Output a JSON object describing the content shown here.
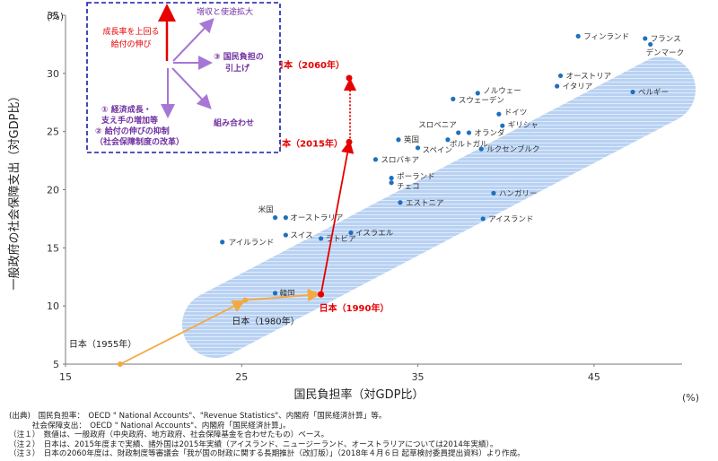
{
  "chart_data": {
    "type": "scatter",
    "xlabel": "国民負担率（対GDP比）",
    "ylabel": "一般政府の社会保障支出（対GDP比）",
    "x_unit": "(%)",
    "y_unit": "(%)",
    "xlim": [
      15,
      50
    ],
    "ylim": [
      5,
      35
    ],
    "xticks": [
      "15",
      "25",
      "35",
      "45"
    ],
    "yticks": [
      "5",
      "10",
      "15",
      "20",
      "25",
      "30",
      "35"
    ],
    "grid": false,
    "points": [
      {
        "name": "フィンランド",
        "x": 44.1,
        "y": 33.2
      },
      {
        "name": "フランス",
        "x": 47.9,
        "y": 33.0
      },
      {
        "name": "デンマーク",
        "x": 48.2,
        "y": 32.5
      },
      {
        "name": "オーストリア",
        "x": 43.1,
        "y": 29.8
      },
      {
        "name": "イタリア",
        "x": 42.9,
        "y": 28.9
      },
      {
        "name": "ベルギー",
        "x": 47.2,
        "y": 28.4
      },
      {
        "name": "ノルウェー",
        "x": 38.4,
        "y": 28.3
      },
      {
        "name": "スウェーデン",
        "x": 37.0,
        "y": 27.8
      },
      {
        "name": "ドイツ",
        "x": 39.6,
        "y": 26.5
      },
      {
        "name": "ギリシャ",
        "x": 39.8,
        "y": 25.5
      },
      {
        "name": "オランダ",
        "x": 37.9,
        "y": 24.9
      },
      {
        "name": "スロベニア",
        "x": 37.3,
        "y": 24.9
      },
      {
        "name": "ポルトガル",
        "x": 36.7,
        "y": 24.3
      },
      {
        "name": "英国",
        "x": 33.9,
        "y": 24.3
      },
      {
        "name": "スペイン",
        "x": 35.0,
        "y": 23.6
      },
      {
        "name": "ルクセンブルク",
        "x": 38.6,
        "y": 23.5
      },
      {
        "name": "スロバキア",
        "x": 32.6,
        "y": 22.6
      },
      {
        "name": "ポーランド",
        "x": 33.5,
        "y": 21.0
      },
      {
        "name": "チェコ",
        "x": 33.5,
        "y": 20.6
      },
      {
        "name": "エストニア",
        "x": 34.0,
        "y": 18.9
      },
      {
        "name": "ハンガリー",
        "x": 39.3,
        "y": 19.7
      },
      {
        "name": "米国",
        "x": 26.9,
        "y": 17.6
      },
      {
        "name": "オーストラリア",
        "x": 27.5,
        "y": 17.6
      },
      {
        "name": "スイス",
        "x": 27.5,
        "y": 16.1
      },
      {
        "name": "ラトビア",
        "x": 29.5,
        "y": 15.8
      },
      {
        "name": "イスラエル",
        "x": 31.2,
        "y": 16.3
      },
      {
        "name": "アイスランド",
        "x": 38.7,
        "y": 17.5
      },
      {
        "name": "アイルランド",
        "x": 23.9,
        "y": 15.5
      },
      {
        "name": "韓国",
        "x": 26.9,
        "y": 11.1
      }
    ],
    "japan_series": [
      {
        "label": "日本（1955年）",
        "x": 18.1,
        "y": 5.0
      },
      {
        "label": "日本（1980年）",
        "x": 25.2,
        "y": 10.5
      },
      {
        "label": "日本（1990年）",
        "x": 29.5,
        "y": 11.0
      },
      {
        "label": "日本（2015年）",
        "x": 31.1,
        "y": 24.1
      },
      {
        "label": "日本（2060年）",
        "x": 31.1,
        "y": 29.6
      }
    ]
  },
  "legend_box": {
    "growth_label_1": "成長率を上回る",
    "growth_label_2": "給付の伸び",
    "tax_increase": "増収と使途拡大",
    "burden_1": "③ 国民負担の",
    "burden_2": "引上げ",
    "reform_1": "① 経済成長・",
    "reform_2": "支え手の増加等",
    "reform_3": "② 給付の伸びの抑制",
    "reform_4": "（社会保障制度の改革）",
    "combo": "組み合わせ"
  },
  "notes": [
    "(出典)　国民負担率：　OECD \" National Accounts\"、\"Revenue Statistics\"、内閣府「国民経済計算」等。",
    "　　　社会保障支出：　OECD \" National Accounts\"、内閣府「国民経済計算」。",
    "（注１）　数値は、一般政府（中央政府、地方政府、社会保障基金を合わせたもの）ベース。",
    "（注２）　日本は、2015年度まで実績、諸外国は2015年実績（アイスランド、ニュージーランド、オーストラリアについては2014年実績）。",
    "（注３）　日本の2060年度は、財政制度等審議会「我が国の財政に関する長期推計（改訂版）」（2018年４月６日 起草検討委員提出資料）より作成。"
  ],
  "colors": {
    "point": "#1f6fbf",
    "japan_red": "#e60000",
    "japan_orange": "#f4a940",
    "band": "#a9c6f0",
    "legend_border": "#1a1aa8",
    "purple": "#a777d6"
  }
}
